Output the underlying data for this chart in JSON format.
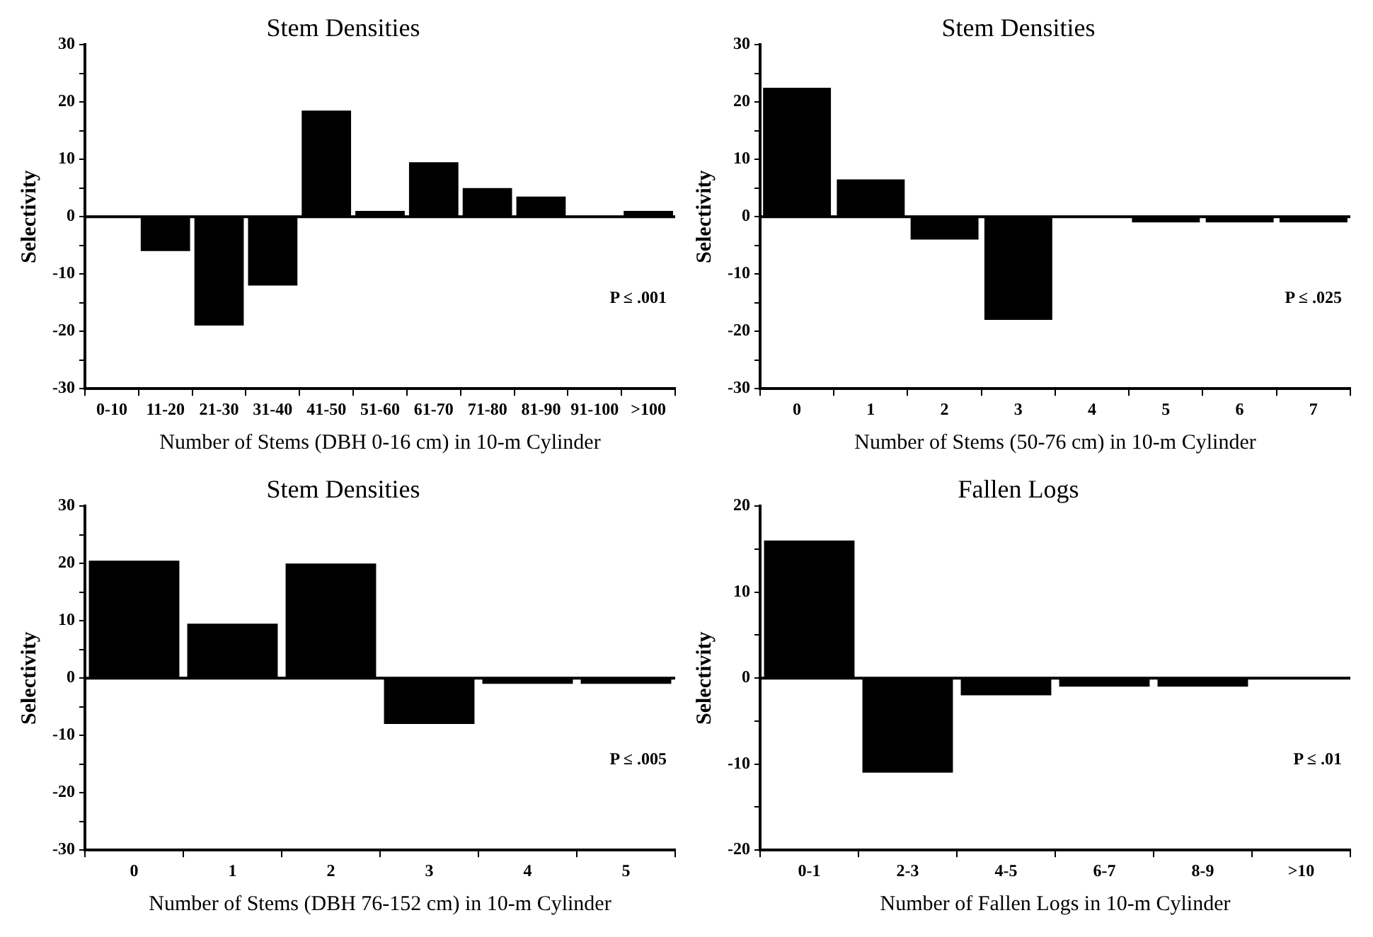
{
  "chart_data": [
    {
      "type": "bar",
      "title": "Stem Densities",
      "xlabel": "Number of Stems (DBH 0-16 cm) in 10-m Cylinder",
      "ylabel": "Selectivity",
      "categories": [
        "0-10",
        "11-20",
        "21-30",
        "31-40",
        "41-50",
        "51-60",
        "61-70",
        "71-80",
        "81-90",
        "91-100",
        ">100"
      ],
      "values": [
        0,
        -6,
        -19,
        -12,
        18.5,
        1,
        9.5,
        5,
        3.5,
        null,
        1
      ],
      "color": "#000000",
      "ylim": [
        -30,
        30
      ],
      "yticks": [
        -30,
        {
          "value": -25,
          "label": null
        },
        -20,
        {
          "value": -15,
          "label": null
        },
        -10,
        {
          "value": -5,
          "label": null
        },
        0,
        {
          "value": 5,
          "label": null
        },
        10,
        {
          "value": 15,
          "label": null
        },
        20,
        {
          "value": 25,
          "label": null
        },
        30
      ],
      "ref_lines": [
        {
          "axis": "y",
          "value": 0
        }
      ],
      "annotations": [
        "P ≤ .001"
      ],
      "grid": false,
      "legend": false
    },
    {
      "type": "bar",
      "title": "Stem Densities",
      "xlabel": "Number of Stems (50-76 cm) in 10-m Cylinder",
      "ylabel": "Selectivity",
      "categories": [
        "0",
        "1",
        "2",
        "3",
        "4",
        "5",
        "6",
        "7"
      ],
      "values": [
        22.5,
        6.5,
        -4,
        -18,
        0,
        -1,
        -1,
        -1
      ],
      "color": "#000000",
      "ylim": [
        -30,
        30
      ],
      "yticks": [
        -30,
        {
          "value": -25,
          "label": null
        },
        -20,
        {
          "value": -15,
          "label": null
        },
        -10,
        {
          "value": -5,
          "label": null
        },
        0,
        {
          "value": 5,
          "label": null
        },
        10,
        {
          "value": 15,
          "label": null
        },
        20,
        {
          "value": 25,
          "label": null
        },
        30
      ],
      "ref_lines": [
        {
          "axis": "y",
          "value": 0
        }
      ],
      "annotations": [
        "P ≤ .025"
      ],
      "grid": false,
      "legend": false
    },
    {
      "type": "bar",
      "title": "Stem Densities",
      "xlabel": "Number of Stems (DBH 76-152 cm) in 10-m Cylinder",
      "ylabel": "Selectivity",
      "categories": [
        "0",
        "1",
        "2",
        "3",
        "4",
        "5"
      ],
      "values": [
        20.5,
        9.5,
        20,
        -8,
        -1,
        -1
      ],
      "color": "#000000",
      "ylim": [
        -30,
        30
      ],
      "yticks": [
        -30,
        {
          "value": -25,
          "label": null
        },
        -20,
        {
          "value": -15,
          "label": null
        },
        -10,
        {
          "value": -5,
          "label": null
        },
        0,
        {
          "value": 5,
          "label": null
        },
        10,
        {
          "value": 15,
          "label": null
        },
        20,
        {
          "value": 25,
          "label": null
        },
        30
      ],
      "ref_lines": [
        {
          "axis": "y",
          "value": 0
        }
      ],
      "annotations": [
        "P ≤ .005"
      ],
      "grid": false,
      "legend": false
    },
    {
      "type": "bar",
      "title": "Fallen Logs",
      "xlabel": "Number of Fallen Logs in 10-m Cylinder",
      "ylabel": "Selectivity",
      "categories": [
        "0-1",
        "2-3",
        "4-5",
        "6-7",
        "8-9",
        ">10"
      ],
      "values": [
        16,
        -11,
        -2,
        -1,
        -1,
        null
      ],
      "color": "#000000",
      "ylim": [
        -20,
        20
      ],
      "yticks": [
        -20,
        {
          "value": -15,
          "label": null
        },
        -10,
        {
          "value": -5,
          "label": null
        },
        0,
        {
          "value": 5,
          "label": null
        },
        10,
        {
          "value": 15,
          "label": null
        },
        20
      ],
      "ref_lines": [
        {
          "axis": "y",
          "value": 0
        }
      ],
      "annotations": [
        "P ≤ .01"
      ],
      "grid": false,
      "legend": false
    }
  ]
}
